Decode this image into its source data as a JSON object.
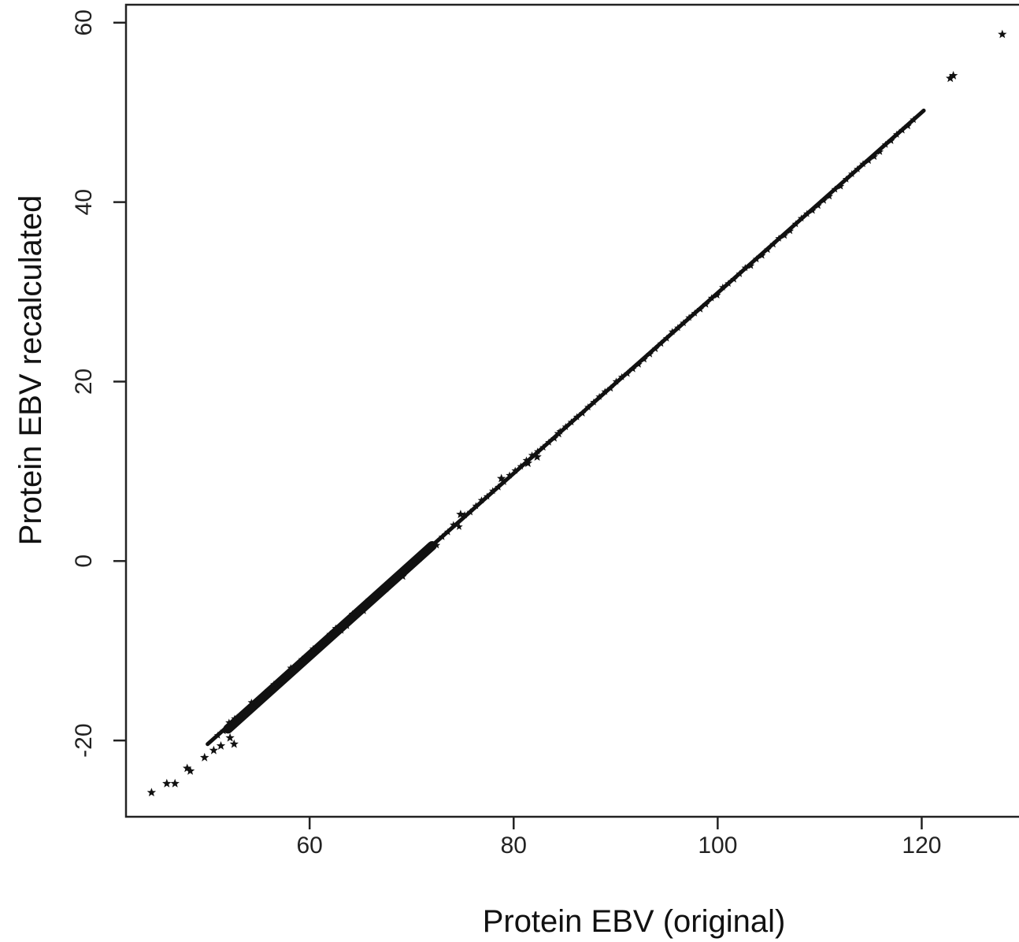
{
  "chart_data": {
    "type": "scatter",
    "xlabel": "Protein EBV (original)",
    "ylabel": "Protein EBV recalculated",
    "xlim": [
      42.0,
      130.0
    ],
    "ylim": [
      -28.5,
      62.0
    ],
    "x_ticks": [
      60,
      80,
      100,
      120
    ],
    "y_ticks": [
      -20,
      0,
      20,
      40,
      60
    ],
    "x_tick_labels": [
      "60",
      "80",
      "100",
      "120"
    ],
    "y_tick_labels": [
      "-20",
      "0",
      "20",
      "40",
      "60"
    ],
    "grid": false,
    "legend": false,
    "marker": "star",
    "marker_color": "#111111",
    "series": [
      {
        "trend": {
          "x_start": 44.5,
          "x_end": 120.2,
          "slope": 1.0,
          "intercept": -70.0
        },
        "outliers": [
          {
            "x": 44.5,
            "y": -25.8
          },
          {
            "x": 46.0,
            "y": -24.8
          },
          {
            "x": 46.8,
            "y": -24.8
          },
          {
            "x": 48.0,
            "y": -23.1
          },
          {
            "x": 48.3,
            "y": -23.4
          },
          {
            "x": 49.7,
            "y": -21.9
          },
          {
            "x": 50.6,
            "y": -21.1
          },
          {
            "x": 51.3,
            "y": -20.6
          },
          {
            "x": 52.6,
            "y": -20.4
          },
          {
            "x": 52.2,
            "y": -19.7
          },
          {
            "x": 81.4,
            "y": 10.9
          },
          {
            "x": 82.3,
            "y": 11.6
          },
          {
            "x": 84.4,
            "y": 14.2
          },
          {
            "x": 78.8,
            "y": 9.2
          },
          {
            "x": 74.8,
            "y": 5.2
          },
          {
            "x": 122.8,
            "y": 53.8
          },
          {
            "x": 123.1,
            "y": 54.1
          },
          {
            "x": 127.9,
            "y": 58.7
          }
        ]
      }
    ]
  }
}
